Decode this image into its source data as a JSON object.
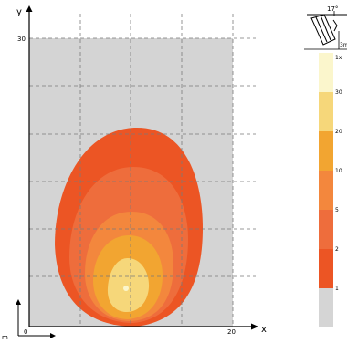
{
  "plot": {
    "y_axis_label": "y",
    "x_axis_label": "x",
    "y_tick_30": "30",
    "x_tick_0": "0",
    "x_tick_20": "20",
    "scale_label": "m"
  },
  "fixture_icon": {
    "tilt_label": "17°",
    "height_label": "3m"
  },
  "legend": {
    "bands": [
      {
        "label": "1x",
        "color": "#fbf6cc"
      },
      {
        "label": "30",
        "color": "#f6d77a"
      },
      {
        "label": "20",
        "color": "#f2a531"
      },
      {
        "label": "10",
        "color": "#f3873d"
      },
      {
        "label": "5",
        "color": "#ee6d3c"
      },
      {
        "label": "2",
        "color": "#ec5524"
      },
      {
        "label": "1",
        "color": "#d5d5d5"
      }
    ]
  },
  "colors": {
    "background": "#d4d4d4",
    "grid": "#7a7a7a",
    "contour_1": "#ec5524",
    "contour_2": "#ee6d3c",
    "contour_3": "#f3873d",
    "contour_4": "#f2a531",
    "contour_5": "#f6d77a",
    "peak": "#fbf6cc"
  }
}
